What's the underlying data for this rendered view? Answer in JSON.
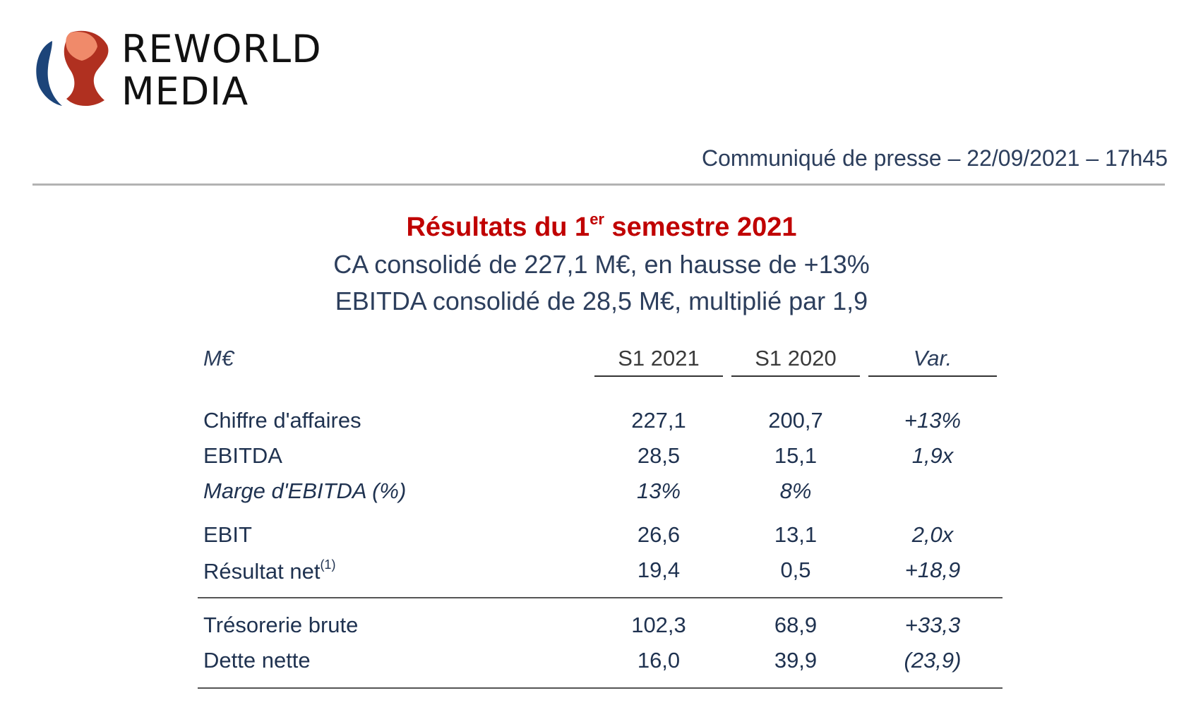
{
  "logo": {
    "line1": "REWORLD",
    "line2": "MEDIA",
    "colors": {
      "blue": "#1c4479",
      "orange": "#f08a6a",
      "red": "#b03020"
    }
  },
  "press_release": "Communiqué de presse – 22/09/2021 – 17h45",
  "headline": {
    "title_before": "Résultats du 1",
    "title_sup": "er",
    "title_after": " semestre 2021",
    "line2": "CA consolidé de 227,1 M€, en hausse de +13%",
    "line3": "EBITDA consolidé de 28,5 M€, multiplié par 1,9"
  },
  "table": {
    "headers": {
      "label": "M€",
      "col1": "S1 2021",
      "col2": "S1 2020",
      "col3": "Var."
    },
    "rows": [
      {
        "label": "Chiffre d'affaires",
        "s1_2021": "227,1",
        "s1_2020": "200,7",
        "var": "+13%"
      },
      {
        "label": "EBITDA",
        "s1_2021": "28,5",
        "s1_2020": "15,1",
        "var": "1,9x"
      },
      {
        "label": "Marge d'EBITDA (%)",
        "s1_2021": "13%",
        "s1_2020": "8%",
        "var": ""
      },
      {
        "label": "EBIT",
        "s1_2021": "26,6",
        "s1_2020": "13,1",
        "var": "2,0x"
      },
      {
        "label": "Résultat net",
        "label_sup": "(1)",
        "s1_2021": "19,4",
        "s1_2020": "0,5",
        "var": "+18,9"
      },
      {
        "label": "Trésorerie brute",
        "s1_2021": "102,3",
        "s1_2020": "68,9",
        "var": "+33,3"
      },
      {
        "label": "Dette nette",
        "s1_2021": "16,0",
        "s1_2020": "39,9",
        "var": "(23,9)"
      }
    ]
  }
}
